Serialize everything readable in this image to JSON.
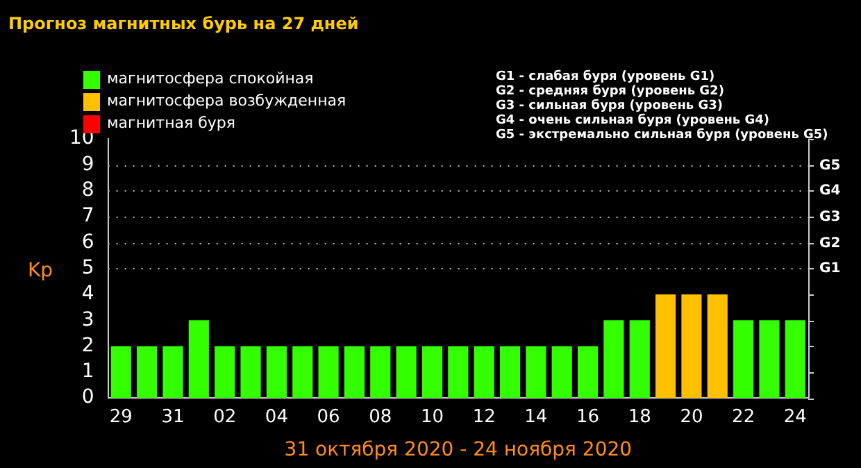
{
  "chart_data": {
    "type": "bar",
    "title": "Прогноз магнитных бурь на 27 дней",
    "xlabel": "31 октября 2020 - 24 ноября 2020",
    "ylabel": "Kp",
    "categories": [
      "29",
      null,
      "31",
      null,
      "02",
      null,
      "04",
      null,
      "06",
      null,
      "08",
      null,
      "10",
      null,
      "12",
      null,
      "14",
      null,
      "16",
      null,
      "18",
      null,
      "20",
      null,
      "22",
      null,
      "24"
    ],
    "stacked": true,
    "series": [
      {
        "name": "магнитосфера спокойная",
        "color": "#33ff00",
        "values": [
          2,
          2,
          2,
          3,
          2,
          2,
          2,
          2,
          2,
          2,
          2,
          2,
          2,
          2,
          2,
          2,
          2,
          2,
          2,
          3,
          3,
          null,
          null,
          null,
          3,
          3,
          3
        ]
      },
      {
        "name": "магнитосфера возбужденная",
        "color": "#ffc000",
        "values": [
          null,
          null,
          null,
          null,
          null,
          null,
          null,
          null,
          null,
          null,
          null,
          null,
          null,
          null,
          null,
          null,
          null,
          null,
          null,
          null,
          null,
          4,
          4,
          4,
          null,
          null,
          null
        ]
      },
      {
        "name": "магнитная буря",
        "color": "#ff0000",
        "values": [
          null,
          null,
          null,
          null,
          null,
          null,
          null,
          null,
          null,
          null,
          null,
          null,
          null,
          null,
          null,
          null,
          null,
          null,
          null,
          null,
          null,
          null,
          null,
          null,
          null,
          null,
          null
        ]
      }
    ],
    "ylim": [
      0,
      10
    ],
    "yticks": [
      0,
      1,
      2,
      3,
      4,
      5,
      6,
      7,
      8,
      9,
      10
    ],
    "ref_lines": [
      {
        "axis": "y",
        "value": 5,
        "label": "G1",
        "line_style": "dotted"
      },
      {
        "axis": "y",
        "value": 6,
        "label": "G2",
        "line_style": "dotted"
      },
      {
        "axis": "y",
        "value": 7,
        "label": "G3",
        "line_style": "dotted"
      },
      {
        "axis": "y",
        "value": 8,
        "label": "G4",
        "line_style": "dotted"
      },
      {
        "axis": "y",
        "value": 9,
        "label": "G5",
        "line_style": "dotted"
      }
    ],
    "legend": "top left",
    "annotations": [
      "G1 - слабая буря (уровень G1)",
      "G2 - средняя буря (уровень G2)",
      "G3 - сильная буря (уровень G3)",
      "G4 - очень сильная буря (уровень G4)",
      "G5 - экстремально сильная буря (уровень G5)"
    ]
  }
}
